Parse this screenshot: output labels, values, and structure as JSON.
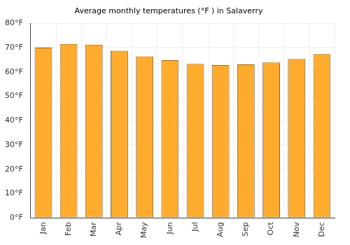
{
  "chart_data": {
    "type": "bar",
    "title": "Average monthly temperatures (°F ) in Salaverry",
    "categories": [
      "Jan",
      "Feb",
      "Mar",
      "Apr",
      "May",
      "Jun",
      "Jul",
      "Aug",
      "Sep",
      "Oct",
      "Nov",
      "Dec"
    ],
    "values": [
      70.0,
      71.5,
      71.2,
      68.7,
      66.4,
      64.8,
      63.3,
      62.8,
      63.1,
      63.9,
      65.3,
      67.3
    ],
    "color": "#ffab2e",
    "ylim": [
      0,
      80
    ],
    "yticks": [
      {
        "value": 0,
        "label": "0°F"
      },
      {
        "value": 10,
        "label": "10°F"
      },
      {
        "value": 20,
        "label": "20°F"
      },
      {
        "value": 30,
        "label": "30°F"
      },
      {
        "value": 40,
        "label": "40°F"
      },
      {
        "value": 50,
        "label": "50°F"
      },
      {
        "value": 60,
        "label": "60°F"
      },
      {
        "value": 70,
        "label": "70°F"
      },
      {
        "value": 80,
        "label": "80°F"
      }
    ],
    "grid": true
  }
}
